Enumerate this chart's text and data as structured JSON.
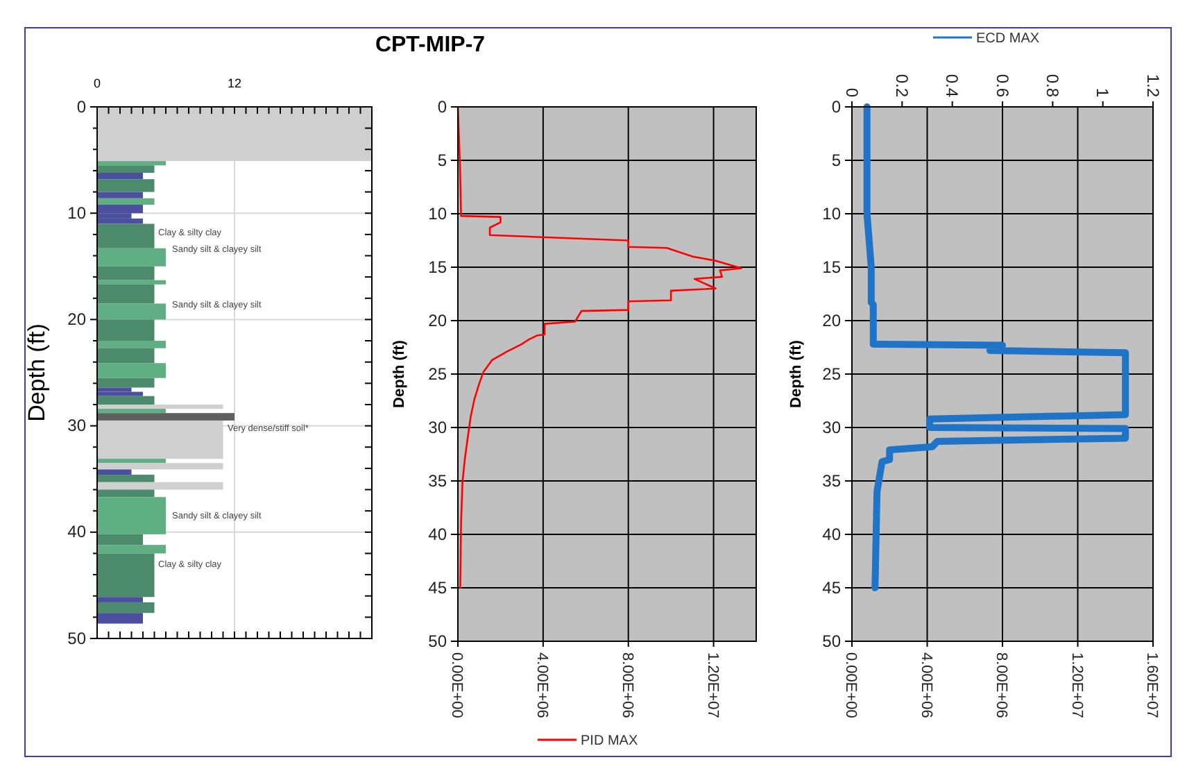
{
  "chart_data": [
    {
      "type": "bar",
      "orientation": "horizontal",
      "title": "CPT-MIP-7",
      "ylabel": "Depth (ft)",
      "x": [
        2.55,
        5.3,
        5.85,
        6.5,
        7.4,
        8.3,
        8.9,
        9.6,
        10.25,
        10.75,
        12.15,
        14.15,
        15.65,
        16.5,
        17.6,
        19.25,
        21.0,
        22.35,
        23.4,
        24.8,
        25.95,
        26.6,
        27.0,
        27.6,
        28.2,
        28.6,
        29.15,
        31.3,
        33.3,
        33.8,
        34.35,
        34.95,
        35.65,
        36.35,
        38.45,
        40.7,
        41.6,
        44.05,
        46.35,
        47.1,
        48.1
      ],
      "values": [
        24,
        6,
        5,
        4,
        5,
        4,
        5,
        4,
        3,
        4,
        5,
        6,
        5,
        6,
        5,
        6,
        5,
        6,
        5,
        6,
        5,
        3,
        4,
        5,
        11,
        6,
        12,
        11,
        6,
        11,
        3,
        5,
        11,
        5,
        6,
        4,
        6,
        5,
        4,
        5,
        4
      ],
      "colors": [
        "#cfcfcf",
        "#5fae84",
        "#4c8a6c",
        "#4b4f9e",
        "#4c8a6c",
        "#4b4f9e",
        "#5fae84",
        "#4b4f9e",
        "#4b4f9e",
        "#4b4f9e",
        "#4c8a6c",
        "#5fae84",
        "#4c8a6c",
        "#5fae84",
        "#4c8a6c",
        "#5fae84",
        "#4c8a6c",
        "#5fae84",
        "#4c8a6c",
        "#5fae84",
        "#4c8a6c",
        "#4b4f9e",
        "#4b4f9e",
        "#4c8a6c",
        "#cfcfcf",
        "#5fae84",
        "#5f5f5f",
        "#cfcfcf",
        "#5fae84",
        "#cfcfcf",
        "#4b4f9e",
        "#4c8a6c",
        "#cfcfcf",
        "#4c8a6c",
        "#5fae84",
        "#4c8a6c",
        "#5fae84",
        "#4c8a6c",
        "#4b4f9e",
        "#4c8a6c",
        "#4b4f9e"
      ],
      "xlim": [
        0,
        24
      ],
      "xticks": [
        0,
        {
          "value": 1,
          "label": null
        },
        {
          "value": 2,
          "label": null
        },
        {
          "value": 3,
          "label": null
        },
        {
          "value": 4,
          "label": null
        },
        {
          "value": 5,
          "label": null
        },
        {
          "value": 6,
          "label": null
        },
        {
          "value": 7,
          "label": null
        },
        {
          "value": 8,
          "label": null
        },
        {
          "value": 9,
          "label": null
        },
        {
          "value": 10,
          "label": null
        },
        {
          "value": 11,
          "label": null
        },
        12,
        {
          "value": 13,
          "label": null
        },
        {
          "value": 14,
          "label": null
        },
        {
          "value": 15,
          "label": null
        },
        {
          "value": 16,
          "label": null
        },
        {
          "value": 17,
          "label": null
        },
        {
          "value": 18,
          "label": null
        },
        {
          "value": 19,
          "label": null
        },
        {
          "value": 20,
          "label": null
        },
        {
          "value": 21,
          "label": null
        },
        {
          "value": 22,
          "label": null
        },
        {
          "value": 23,
          "label": null
        },
        {
          "value": 24,
          "label": null
        }
      ],
      "ylim": [
        50,
        0
      ],
      "yticks": [
        0,
        {
          "value": 2,
          "label": null
        },
        {
          "value": 4,
          "label": null
        },
        {
          "value": 6,
          "label": null
        },
        {
          "value": 8,
          "label": null
        },
        10,
        {
          "value": 12,
          "label": null
        },
        {
          "value": 14,
          "label": null
        },
        {
          "value": 16,
          "label": null
        },
        {
          "value": 18,
          "label": null
        },
        20,
        {
          "value": 22,
          "label": null
        },
        {
          "value": 24,
          "label": null
        },
        {
          "value": 26,
          "label": null
        },
        {
          "value": 28,
          "label": null
        },
        30,
        {
          "value": 32,
          "label": null
        },
        {
          "value": 34,
          "label": null
        },
        {
          "value": 36,
          "label": null
        },
        {
          "value": 38,
          "label": null
        },
        40,
        {
          "value": 42,
          "label": null
        },
        {
          "value": 44,
          "label": null
        },
        {
          "value": 46,
          "label": null
        },
        {
          "value": 48,
          "label": null
        },
        50
      ],
      "grid": true,
      "annotations": [
        "Clay & silty clay",
        "Sandy silt & clayey silt",
        "Sandy silt & clayey silt",
        "Very dense/stiff soil*",
        "Sandy silt & clayey silt",
        "Clay & silty clay"
      ]
    },
    {
      "type": "line",
      "ylabel": "Depth (ft)",
      "legend": "bottom",
      "grid": true,
      "xlim": [
        0,
        14000000
      ],
      "xticks": [
        {
          "value": 0,
          "label": "0.00E+00"
        },
        {
          "value": 4000000,
          "label": "4.00E+06"
        },
        {
          "value": 8000000,
          "label": "8.00E+06"
        },
        {
          "value": 12000000,
          "label": "1.20E+07"
        }
      ],
      "ylim": [
        50,
        0
      ],
      "yticks": [
        0,
        5,
        10,
        15,
        20,
        25,
        30,
        35,
        40,
        45,
        50
      ],
      "series": [
        {
          "name": "PID MAX",
          "color": "#ff0000",
          "x": [
            0,
            100000,
            150000,
            2000000,
            2000000,
            1500000,
            1500000,
            8000000,
            8000000,
            9800000,
            11000000,
            12100000,
            13300000,
            12300000,
            12400000,
            11100000,
            12100000,
            10000000,
            10000000,
            8000000,
            8000000,
            5800000,
            5500000,
            4070000,
            4070000,
            3700000,
            3300000,
            3000000,
            2300000,
            1600000,
            1200000,
            1000000,
            770000,
            600000,
            480000,
            330000,
            220000,
            150000,
            110000
          ],
          "values": [
            0,
            5.5,
            10.2,
            10.3,
            10.8,
            11.3,
            12.0,
            12.5,
            13.1,
            13.2,
            14.0,
            14.4,
            15.1,
            15.3,
            15.9,
            16.1,
            17.0,
            17.2,
            18.1,
            18.2,
            19.0,
            19.1,
            20.1,
            20.3,
            21.3,
            21.4,
            21.8,
            22.2,
            22.9,
            23.7,
            24.8,
            25.9,
            27.4,
            29.0,
            30.7,
            32.9,
            35.0,
            38.9,
            45.0
          ]
        }
      ]
    },
    {
      "type": "line",
      "ylabel": "Depth (ft)",
      "legend": "top",
      "grid": true,
      "xlim": [
        0,
        16000000
      ],
      "xticks": [
        {
          "value": 0,
          "label": "0.00E+00"
        },
        {
          "value": 4000000,
          "label": "4.00E+06"
        },
        {
          "value": 8000000,
          "label": "8.00E+06"
        },
        {
          "value": 12000000,
          "label": "1.20E+07"
        },
        {
          "value": 16000000,
          "label": "1.60E+07"
        }
      ],
      "x2lim": [
        0,
        1.2
      ],
      "x2ticks": [
        0,
        0.2,
        0.4,
        0.6,
        0.8,
        1,
        1.2
      ],
      "ylim": [
        50,
        0
      ],
      "yticks": [
        0,
        5,
        10,
        15,
        20,
        25,
        30,
        35,
        40,
        45,
        50
      ],
      "series": [
        {
          "name": "ECD MAX",
          "color": "#1f74c8",
          "axis": "x2",
          "x": [
            0.06,
            0.06,
            0.077,
            0.077,
            0.085,
            0.085,
            0.6,
            0.55,
            1.09,
            1.09,
            0.31,
            0.31,
            1.09,
            1.09,
            0.34,
            0.32,
            0.15,
            0.15,
            0.12,
            0.1,
            0.092
          ],
          "values": [
            0,
            10,
            15,
            18.3,
            18.5,
            22.2,
            22.3,
            22.8,
            23.0,
            28.8,
            29.2,
            30.0,
            30.1,
            31.0,
            31.3,
            31.8,
            32.1,
            33.0,
            33.2,
            36.0,
            45.0
          ]
        }
      ]
    }
  ]
}
